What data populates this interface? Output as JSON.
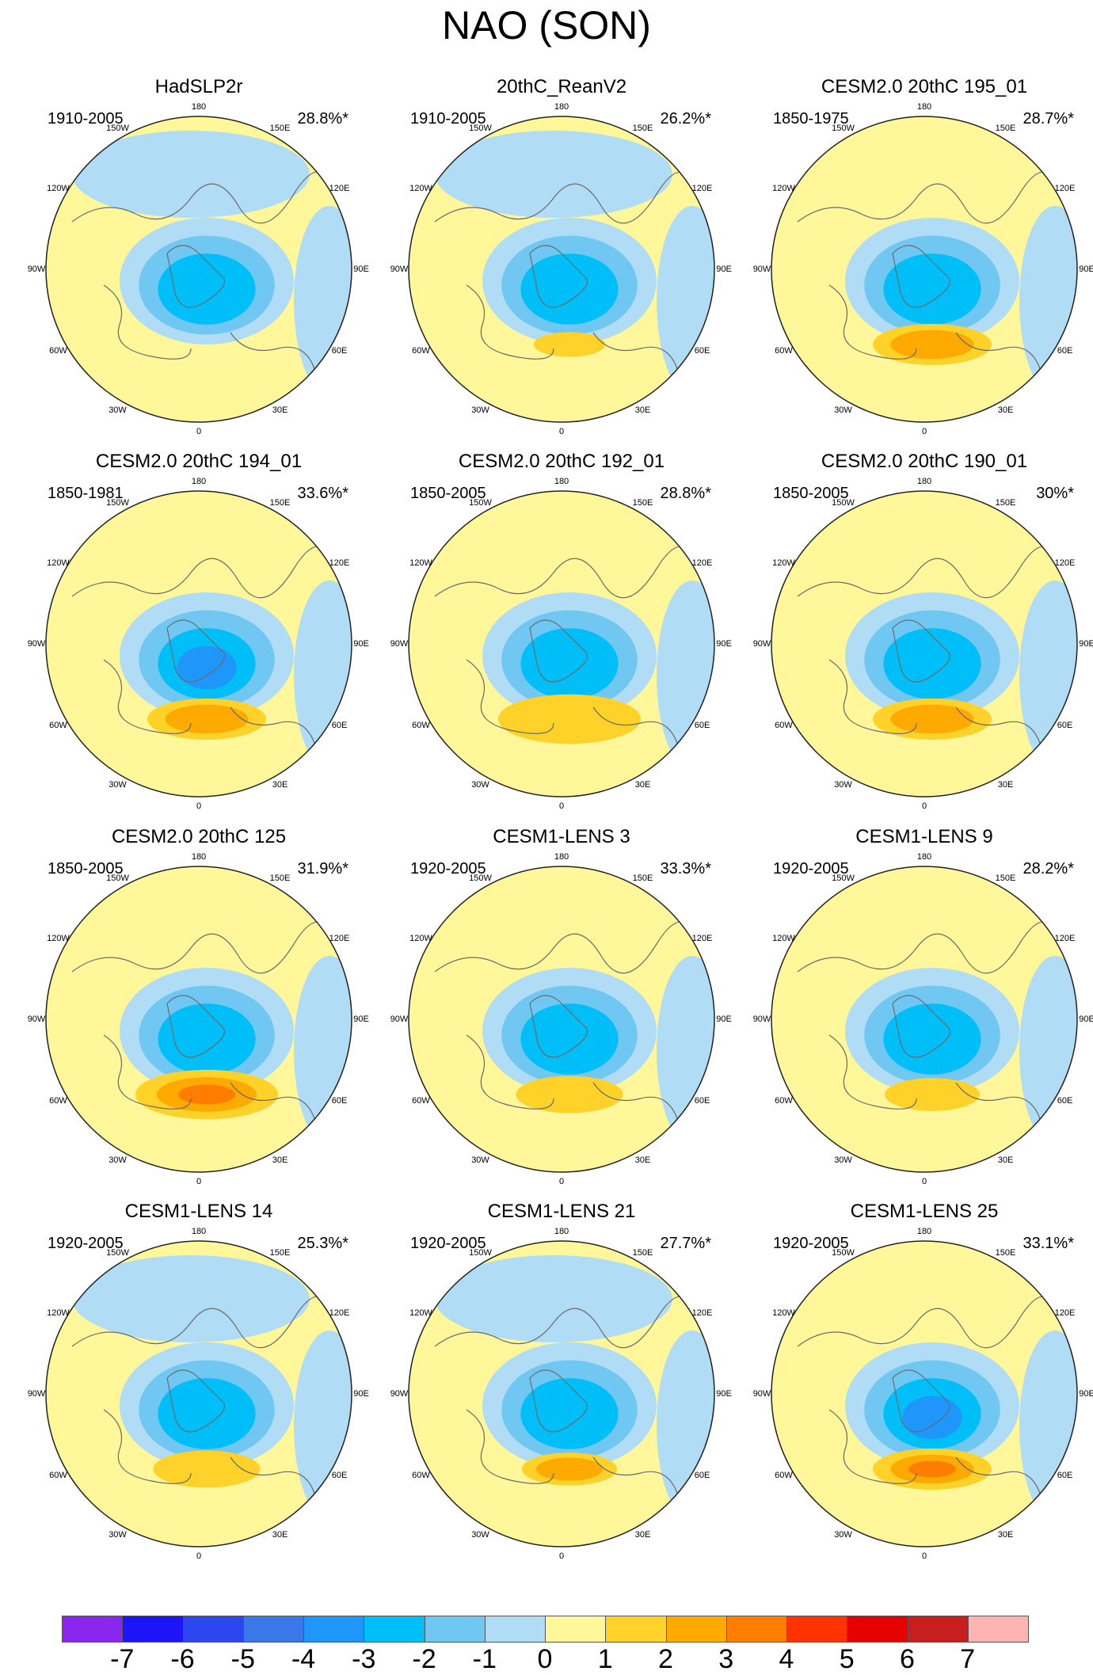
{
  "title": "NAO (SON)",
  "chart_data": {
    "type": "polar-contour-map",
    "projection": "north polar stereographic",
    "variable": "NAO SLP regression pattern",
    "season": "SON",
    "longitude_labels": [
      "180",
      "150W",
      "150E",
      "120W",
      "120E",
      "90W",
      "90E",
      "60W",
      "60E",
      "30W",
      "30E",
      "0"
    ],
    "colorbar": {
      "labels": [
        "-7",
        "-6",
        "-5",
        "-4",
        "-3",
        "-2",
        "-1",
        "0",
        "1",
        "2",
        "3",
        "4",
        "5",
        "6",
        "7"
      ],
      "colors": [
        "#8a26ee",
        "#1e14fa",
        "#2d46f0",
        "#3a78ea",
        "#1e96fa",
        "#00bef7",
        "#70c8f2",
        "#b1dcf5",
        "#fff799",
        "#ffd22a",
        "#ffaa00",
        "#ff7d00",
        "#ff3200",
        "#e60000",
        "#c81e1e",
        "#ffb4b4"
      ]
    },
    "panels": [
      {
        "name": "HadSLP2r",
        "period": "1910-2005",
        "variance": "28.8%*",
        "pattern": {
          "center_amp": -3,
          "pos_amp": 0,
          "pos_size": 0,
          "pac_neg": 1
        }
      },
      {
        "name": "20thC_ReanV2",
        "period": "1910-2005",
        "variance": "26.2%*",
        "pattern": {
          "center_amp": -3,
          "pos_amp": 1,
          "pos_size": 0.6,
          "pac_neg": 1
        }
      },
      {
        "name": "CESM2.0 20thC 195_01",
        "period": "1850-1975",
        "variance": "28.7%*",
        "pattern": {
          "center_amp": -3,
          "pos_amp": 2,
          "pos_size": 1.0,
          "pac_neg": 0
        }
      },
      {
        "name": "CESM2.0 20thC 194_01",
        "period": "1850-1981",
        "variance": "33.6%*",
        "pattern": {
          "center_amp": -4,
          "pos_amp": 2,
          "pos_size": 1.0,
          "pac_neg": 0
        }
      },
      {
        "name": "CESM2.0 20thC 192_01",
        "period": "1850-2005",
        "variance": "28.8%*",
        "pattern": {
          "center_amp": -3,
          "pos_amp": 1,
          "pos_size": 1.2,
          "pac_neg": 0
        }
      },
      {
        "name": "CESM2.0 20thC 190_01",
        "period": "1850-2005",
        "variance": "30%*",
        "pattern": {
          "center_amp": -3,
          "pos_amp": 2,
          "pos_size": 1.0,
          "pac_neg": 0
        }
      },
      {
        "name": "CESM2.0 20thC 125",
        "period": "1850-2005",
        "variance": "31.9%*",
        "pattern": {
          "center_amp": -3,
          "pos_amp": 3,
          "pos_size": 1.2,
          "pac_neg": 0
        }
      },
      {
        "name": "CESM1-LENS 3",
        "period": "1920-2005",
        "variance": "33.3%*",
        "pattern": {
          "center_amp": -3,
          "pos_amp": 1,
          "pos_size": 0.9,
          "pac_neg": 0
        }
      },
      {
        "name": "CESM1-LENS 9",
        "period": "1920-2005",
        "variance": "28.2%*",
        "pattern": {
          "center_amp": -3,
          "pos_amp": 1,
          "pos_size": 0.8,
          "pac_neg": 0
        }
      },
      {
        "name": "CESM1-LENS 14",
        "period": "1920-2005",
        "variance": "25.3%*",
        "pattern": {
          "center_amp": -3,
          "pos_amp": 1,
          "pos_size": 0.9,
          "pac_neg": 1
        }
      },
      {
        "name": "CESM1-LENS 21",
        "period": "1920-2005",
        "variance": "27.7%*",
        "pattern": {
          "center_amp": -3,
          "pos_amp": 2,
          "pos_size": 0.8,
          "pac_neg": 1
        }
      },
      {
        "name": "CESM1-LENS 25",
        "period": "1920-2005",
        "variance": "33.1%*",
        "pattern": {
          "center_amp": -4,
          "pos_amp": 3,
          "pos_size": 1.0,
          "pac_neg": 0
        }
      }
    ]
  }
}
